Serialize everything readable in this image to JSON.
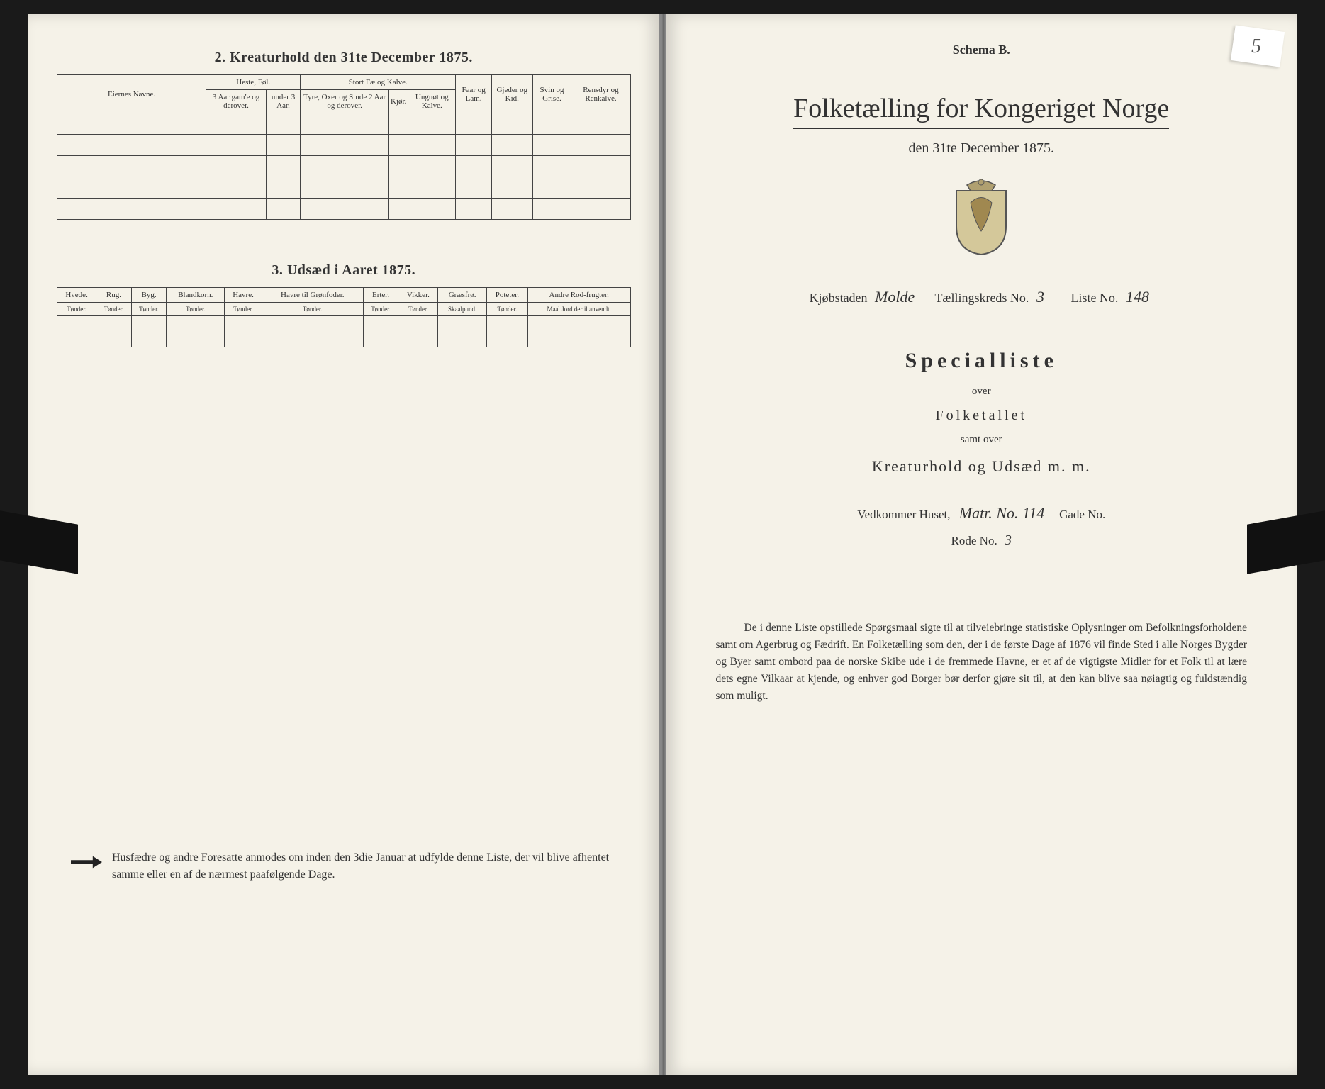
{
  "pageNumber": "5",
  "left": {
    "section2": {
      "title": "2.  Kreaturhold den 31te December 1875.",
      "groupHeaders": [
        "Eiernes Navne.",
        "Heste, Føl.",
        "Stort Fæ og Kalve.",
        "Faar og Lam.",
        "Gjeder og Kid.",
        "Svin og Grise.",
        "Rensdyr og Renkalve."
      ],
      "subHeaders": {
        "heste1": "3 Aar gam'e og derover.",
        "heste2": "under 3 Aar.",
        "fae1": "Tyre, Oxer og Stude 2 Aar og derover.",
        "fae2": "Kjør.",
        "fae3": "Ungnøt og Kalve."
      },
      "bodyRowCount": 5
    },
    "section3": {
      "title": "3.  Udsæd i Aaret 1875.",
      "cols": [
        "Hvede.",
        "Rug.",
        "Byg.",
        "Blandkorn.",
        "Havre.",
        "Havre til Grønfoder.",
        "Erter.",
        "Vikker.",
        "Græsfrø.",
        "Poteter.",
        "Andre Rod-frugter."
      ],
      "units": [
        "Tønder.",
        "Tønder.",
        "Tønder.",
        "Tønder.",
        "Tønder.",
        "Tønder.",
        "Tønder.",
        "Tønder.",
        "Skaalpund.",
        "Tønder.",
        "Maal Jord dertil anvendt."
      ],
      "bodyRowCount": 1
    },
    "footerNote": "Husfædre og andre Foresatte anmodes om inden den 3die Januar at udfylde denne Liste, der vil blive afhentet samme eller en af de nærmest paafølgende Dage."
  },
  "right": {
    "schema": "Schema B.",
    "mainTitle": "Folketælling for Kongeriget Norge",
    "subTitle": "den 31te December 1875.",
    "meta": {
      "kjobstad_label": "Kjøbstaden",
      "kjobstad_value": "Molde",
      "kreds_label": "Tællingskreds No.",
      "kreds_value": "3",
      "liste_label": "Liste No.",
      "liste_value": "148"
    },
    "special": "Specialliste",
    "over": "over",
    "folketallet": "Folketallet",
    "samt": "samt over",
    "kreatur": "Kreaturhold og Udsæd m. m.",
    "vedkommer_label": "Vedkommer Huset,",
    "vedkommer_value": "Matr. No. 114",
    "gade_label": "Gade No.",
    "rode_label": "Rode No.",
    "rode_value": "3",
    "bottom": "De i denne Liste opstillede Spørgsmaal sigte til at tilveiebringe statistiske Oplysninger om Befolkningsforholdene samt om Agerbrug og Fædrift.  En Folketælling som den, der i de første Dage af 1876 vil finde Sted i alle Norges Bygder og Byer samt ombord paa de norske Skibe ude i de fremmede Havne, er et af de vigtigste Midler for et Folk til at lære dets egne Vilkaar at kjende, og enhver god Borger bør derfor gjøre sit til, at den kan blive saa nøiagtig og fuldstændig som muligt."
  }
}
